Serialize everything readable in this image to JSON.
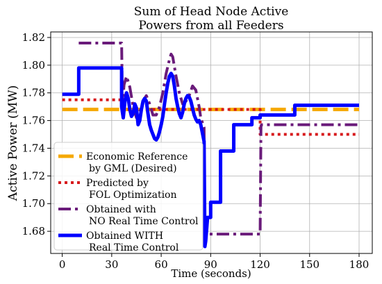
{
  "chart_data": {
    "type": "line",
    "title_lines": [
      "Sum of Head Node Active",
      "Powers from all Feeders"
    ],
    "xlabel": "Time (seconds)",
    "ylabel": "Active Power (MW)",
    "xlim": [
      -7,
      188
    ],
    "ylim": [
      1.664,
      1.824
    ],
    "xticks": [
      0,
      30,
      60,
      90,
      120,
      150,
      180
    ],
    "yticks": [
      1.68,
      1.7,
      1.72,
      1.74,
      1.76,
      1.78,
      1.8,
      1.82
    ],
    "ytick_labels": [
      "1.68",
      "1.70",
      "1.72",
      "1.74",
      "1.76",
      "1.78",
      "1.80",
      "1.82"
    ],
    "grid": true,
    "legend_position": "lower-left",
    "series": [
      {
        "name": "Economic Reference\nby GML (Desired)",
        "color": "#f5a800",
        "style": "dashed",
        "x": [
          0,
          180
        ],
        "y": [
          1.768,
          1.768
        ]
      },
      {
        "name": "Predicted by\nFOL Optimization",
        "color": "#d7191c",
        "style": "dotted",
        "x": [
          0,
          37,
          37,
          120,
          120,
          180
        ],
        "y": [
          1.775,
          1.775,
          1.768,
          1.768,
          1.75,
          1.75
        ]
      },
      {
        "name": "Obtained with\nNO Real Time Control",
        "color": "#6a1b7a",
        "style": "dashdot",
        "x": [
          10,
          36,
          36.5,
          37.5,
          39,
          41,
          43,
          45,
          47,
          49,
          51,
          53,
          55,
          57,
          59,
          61,
          63,
          65,
          66,
          67,
          69,
          71,
          73,
          75,
          77,
          79,
          81,
          83,
          84,
          86,
          86.5,
          87,
          88,
          89,
          120,
          120.5,
          121,
          180
        ],
        "y": [
          1.816,
          1.816,
          1.772,
          1.786,
          1.792,
          1.784,
          1.77,
          1.762,
          1.766,
          1.774,
          1.778,
          1.772,
          1.764,
          1.764,
          1.77,
          1.78,
          1.794,
          1.804,
          1.808,
          1.806,
          1.792,
          1.78,
          1.772,
          1.774,
          1.778,
          1.785,
          1.782,
          1.77,
          1.762,
          1.755,
          1.682,
          1.678,
          1.678,
          1.678,
          1.678,
          1.756,
          1.757,
          1.757
        ]
      },
      {
        "name": "Obtained WITH\nReal Time Control",
        "color": "#0000ff",
        "style": "solid",
        "x": [
          0,
          10,
          10,
          36,
          36,
          37,
          38,
          39,
          40,
          41,
          42,
          43,
          44,
          45,
          46,
          47,
          48,
          49,
          50,
          51,
          52,
          53,
          54,
          55,
          56,
          57,
          58,
          59,
          60,
          61,
          62,
          63,
          64,
          65,
          66,
          67,
          68,
          69,
          70,
          71,
          72,
          73,
          74,
          75,
          76,
          77,
          78,
          79,
          80,
          81,
          82,
          83,
          84,
          85,
          86,
          86.5,
          87,
          88,
          88,
          90,
          90,
          96,
          96,
          104,
          104,
          115,
          115,
          120,
          120,
          141,
          141,
          180
        ],
        "y": [
          1.779,
          1.779,
          1.798,
          1.798,
          1.77,
          1.762,
          1.774,
          1.78,
          1.776,
          1.768,
          1.763,
          1.765,
          1.772,
          1.769,
          1.757,
          1.76,
          1.768,
          1.774,
          1.776,
          1.774,
          1.765,
          1.757,
          1.753,
          1.75,
          1.747,
          1.746,
          1.748,
          1.752,
          1.757,
          1.763,
          1.772,
          1.78,
          1.787,
          1.792,
          1.794,
          1.792,
          1.785,
          1.776,
          1.77,
          1.765,
          1.762,
          1.766,
          1.772,
          1.776,
          1.778,
          1.777,
          1.774,
          1.769,
          1.764,
          1.761,
          1.759,
          1.76,
          1.757,
          1.751,
          1.745,
          1.669,
          1.673,
          1.688,
          1.69,
          1.69,
          1.701,
          1.701,
          1.738,
          1.738,
          1.757,
          1.757,
          1.762,
          1.762,
          1.764,
          1.764,
          1.771,
          1.771
        ]
      }
    ]
  }
}
